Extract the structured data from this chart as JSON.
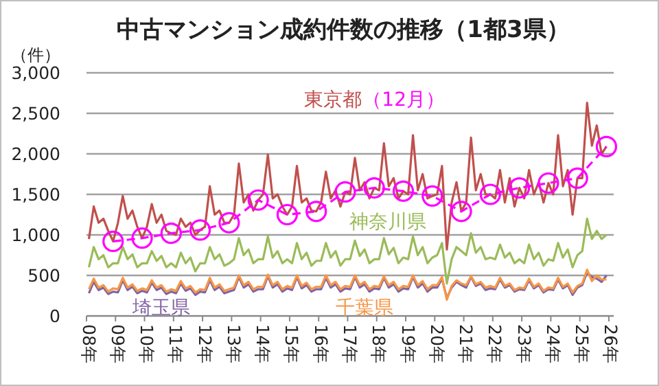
{
  "chart_data": {
    "type": "line",
    "title": "中古マンション成約件数の推移（1都3県）",
    "ylabel": "（件）",
    "ylim": [
      0,
      3000
    ],
    "yticks": [
      {
        "value": 0,
        "label": "0"
      },
      {
        "value": 500,
        "label": "500"
      },
      {
        "value": 1000,
        "label": "1,000"
      },
      {
        "value": 1500,
        "label": "1,500"
      },
      {
        "value": 2000,
        "label": "2,000"
      },
      {
        "value": 2500,
        "label": "2,500"
      },
      {
        "value": 3000,
        "label": "3,000"
      }
    ],
    "categories": [
      "08年",
      null,
      null,
      null,
      null,
      null,
      "09年",
      null,
      null,
      null,
      null,
      null,
      "10年",
      null,
      null,
      null,
      null,
      null,
      "11年",
      null,
      null,
      null,
      null,
      null,
      "12年",
      null,
      null,
      null,
      null,
      null,
      "13年",
      null,
      null,
      null,
      null,
      null,
      "14年",
      null,
      null,
      null,
      null,
      null,
      "15年",
      null,
      null,
      null,
      null,
      null,
      "16年",
      null,
      null,
      null,
      null,
      null,
      "17年",
      null,
      null,
      null,
      null,
      null,
      "18年",
      null,
      null,
      null,
      null,
      null,
      "19年",
      null,
      null,
      null,
      null,
      null,
      "20年",
      null,
      null,
      null,
      null,
      null,
      "21年",
      null,
      null,
      null,
      null,
      null,
      "22年",
      null,
      null,
      null,
      null,
      null,
      "23年",
      null,
      null,
      null,
      null,
      null,
      "24年",
      null,
      null,
      null,
      null,
      null,
      "25年",
      null,
      null,
      null,
      null,
      null,
      "26年"
    ],
    "grid": "y",
    "legend": false,
    "marker": "none",
    "line_style": "solid",
    "series": [
      {
        "name": "東京都",
        "color": "#c0504d",
        "values": [
          950,
          1350,
          1150,
          1200,
          1050,
          920,
          1150,
          1480,
          1200,
          1300,
          1100,
          960,
          1100,
          1380,
          1150,
          1250,
          1050,
          1020,
          1000,
          1200,
          1100,
          1150,
          1000,
          1060,
          1100,
          1600,
          1250,
          1300,
          1150,
          1150,
          1250,
          1880,
          1400,
          1500,
          1300,
          1430,
          1500,
          1990,
          1450,
          1500,
          1350,
          1250,
          1350,
          1850,
          1400,
          1450,
          1300,
          1290,
          1400,
          1780,
          1450,
          1550,
          1350,
          1530,
          1500,
          1950,
          1550,
          1650,
          1450,
          1580,
          1550,
          2130,
          1600,
          1700,
          1450,
          1540,
          1500,
          2230,
          1550,
          1750,
          1450,
          1480,
          1500,
          1850,
          820,
          1400,
          1650,
          1290,
          1400,
          2200,
          1550,
          1750,
          1500,
          1500,
          1450,
          1800,
          1400,
          1700,
          1350,
          1580,
          1450,
          1800,
          1500,
          1650,
          1400,
          1640,
          1500,
          2230,
          1600,
          1800,
          1250,
          1700,
          1700,
          2630,
          2100,
          2350,
          2000,
          2090,
          null
        ]
      },
      {
        "name": "神奈川県",
        "color": "#9bbb59",
        "values": [
          600,
          850,
          700,
          750,
          600,
          650,
          650,
          850,
          700,
          760,
          600,
          650,
          650,
          800,
          680,
          740,
          600,
          650,
          600,
          780,
          650,
          720,
          550,
          650,
          650,
          850,
          700,
          760,
          620,
          650,
          700,
          960,
          750,
          820,
          650,
          700,
          700,
          980,
          720,
          800,
          650,
          700,
          650,
          900,
          700,
          780,
          620,
          680,
          680,
          900,
          720,
          800,
          620,
          700,
          700,
          930,
          740,
          820,
          650,
          700,
          700,
          960,
          760,
          840,
          650,
          720,
          700,
          980,
          750,
          850,
          650,
          720,
          750,
          900,
          400,
          700,
          850,
          800,
          750,
          1020,
          780,
          850,
          700,
          720,
          700,
          880,
          720,
          780,
          650,
          700,
          650,
          880,
          700,
          780,
          620,
          700,
          680,
          900,
          720,
          820,
          600,
          750,
          800,
          1200,
          950,
          1050,
          950,
          1000,
          null
        ]
      },
      {
        "name": "埼玉県",
        "color": "#8064a2",
        "values": [
          280,
          420,
          320,
          350,
          270,
          300,
          290,
          440,
          320,
          360,
          280,
          310,
          290,
          410,
          320,
          350,
          270,
          300,
          280,
          400,
          310,
          340,
          260,
          300,
          290,
          440,
          320,
          360,
          280,
          300,
          320,
          480,
          350,
          390,
          300,
          330,
          330,
          490,
          350,
          390,
          300,
          340,
          320,
          480,
          340,
          380,
          300,
          330,
          330,
          470,
          350,
          390,
          300,
          340,
          330,
          480,
          350,
          390,
          300,
          340,
          330,
          470,
          350,
          390,
          300,
          340,
          330,
          480,
          350,
          400,
          300,
          350,
          350,
          460,
          220,
          350,
          420,
          380,
          350,
          480,
          370,
          400,
          320,
          340,
          330,
          450,
          350,
          380,
          300,
          330,
          320,
          440,
          340,
          380,
          290,
          330,
          320,
          450,
          340,
          380,
          260,
          350,
          380,
          540,
          480,
          460,
          420,
          500,
          null
        ]
      },
      {
        "name": "千葉県",
        "color": "#f79646",
        "values": [
          330,
          460,
          350,
          380,
          300,
          340,
          330,
          470,
          350,
          390,
          310,
          340,
          320,
          440,
          350,
          380,
          300,
          330,
          310,
          430,
          340,
          370,
          290,
          330,
          320,
          470,
          350,
          390,
          310,
          330,
          350,
          500,
          380,
          420,
          330,
          360,
          360,
          510,
          380,
          420,
          330,
          370,
          350,
          500,
          370,
          410,
          330,
          360,
          360,
          500,
          380,
          420,
          330,
          370,
          360,
          500,
          380,
          420,
          330,
          370,
          360,
          490,
          380,
          420,
          330,
          370,
          360,
          500,
          380,
          430,
          330,
          380,
          380,
          480,
          200,
          370,
          440,
          400,
          380,
          490,
          390,
          420,
          350,
          370,
          350,
          470,
          370,
          400,
          320,
          350,
          340,
          460,
          360,
          400,
          310,
          350,
          340,
          470,
          360,
          400,
          290,
          370,
          400,
          570,
          430,
          500,
          450,
          450,
          null
        ]
      },
      {
        "name": "（12月）",
        "color": "#ff00ff",
        "marker": "circle",
        "line_style": "dashed",
        "values": [
          null,
          null,
          null,
          null,
          null,
          920,
          null,
          null,
          null,
          null,
          null,
          960,
          null,
          null,
          null,
          null,
          null,
          1020,
          null,
          null,
          null,
          null,
          null,
          1060,
          null,
          null,
          null,
          null,
          null,
          1150,
          null,
          null,
          null,
          null,
          null,
          1430,
          null,
          null,
          null,
          null,
          null,
          1250,
          null,
          null,
          null,
          null,
          null,
          1290,
          null,
          null,
          null,
          null,
          null,
          1530,
          null,
          null,
          null,
          null,
          null,
          1580,
          null,
          null,
          null,
          null,
          null,
          1540,
          null,
          null,
          null,
          null,
          null,
          1480,
          null,
          null,
          null,
          null,
          null,
          1290,
          null,
          null,
          null,
          null,
          null,
          1500,
          null,
          null,
          null,
          null,
          null,
          1580,
          null,
          null,
          null,
          null,
          null,
          1640,
          null,
          null,
          null,
          null,
          null,
          1700,
          null,
          null,
          null,
          null,
          null,
          2090,
          null
        ]
      }
    ]
  }
}
